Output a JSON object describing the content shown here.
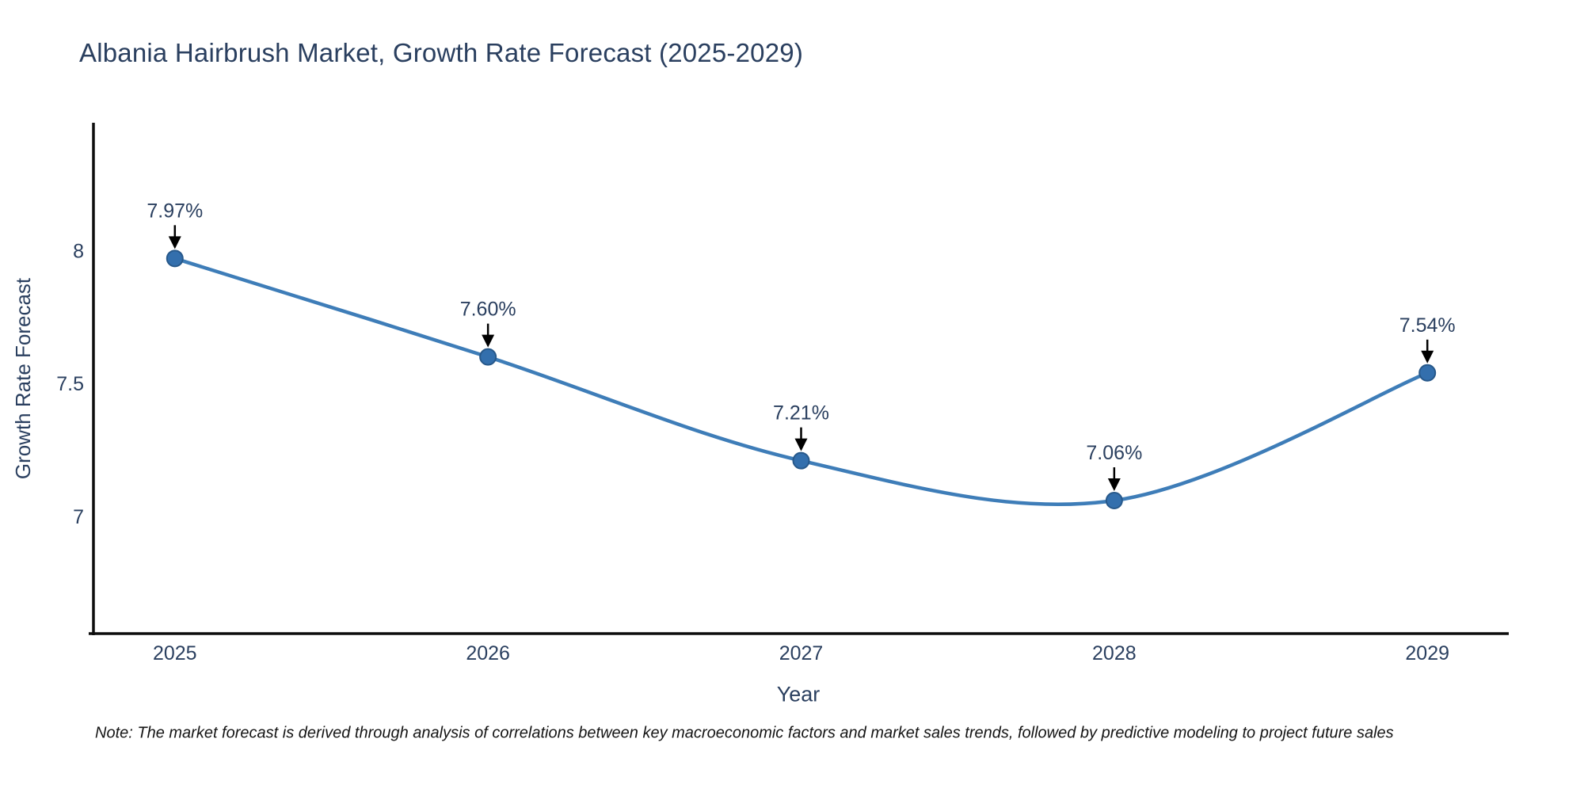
{
  "chart_data": {
    "type": "line",
    "title": "Albania Hairbrush Market, Growth Rate Forecast (2025-2029)",
    "xlabel": "Year",
    "ylabel": "Growth Rate Forecast",
    "x": [
      2025,
      2026,
      2027,
      2028,
      2029
    ],
    "series": [
      {
        "name": "Growth Rate Forecast",
        "values": [
          7.97,
          7.6,
          7.21,
          7.06,
          7.54
        ],
        "point_labels": [
          "7.97%",
          "7.60%",
          "7.21%",
          "7.06%",
          "7.54%"
        ]
      }
    ],
    "line_shape": "spline",
    "markers": true,
    "grid": false,
    "legend": "none",
    "xlim": [
      2024.74,
      2029.26
    ],
    "ylim": [
      6.56,
      8.48
    ],
    "xticks": {
      "values": [
        2025,
        2026,
        2027,
        2028,
        2029
      ],
      "labels": [
        "2025",
        "2026",
        "2027",
        "2028",
        "2029"
      ]
    },
    "yticks": {
      "values": [
        8,
        7.5,
        7
      ],
      "labels": [
        "8",
        "7.5",
        "7"
      ]
    },
    "colors": {
      "line": "#3e7db8",
      "marker_fill": "#336fad",
      "marker_edge": "#27588a",
      "annotation_arrow": "#000000",
      "text": "#2a3f5f",
      "axis_line": "#0d0d0d"
    }
  },
  "note": {
    "text": "Note: The market forecast is derived through analysis of correlations between key macroeconomic factors and market sales trends, followed by predictive modeling to project future sales"
  }
}
